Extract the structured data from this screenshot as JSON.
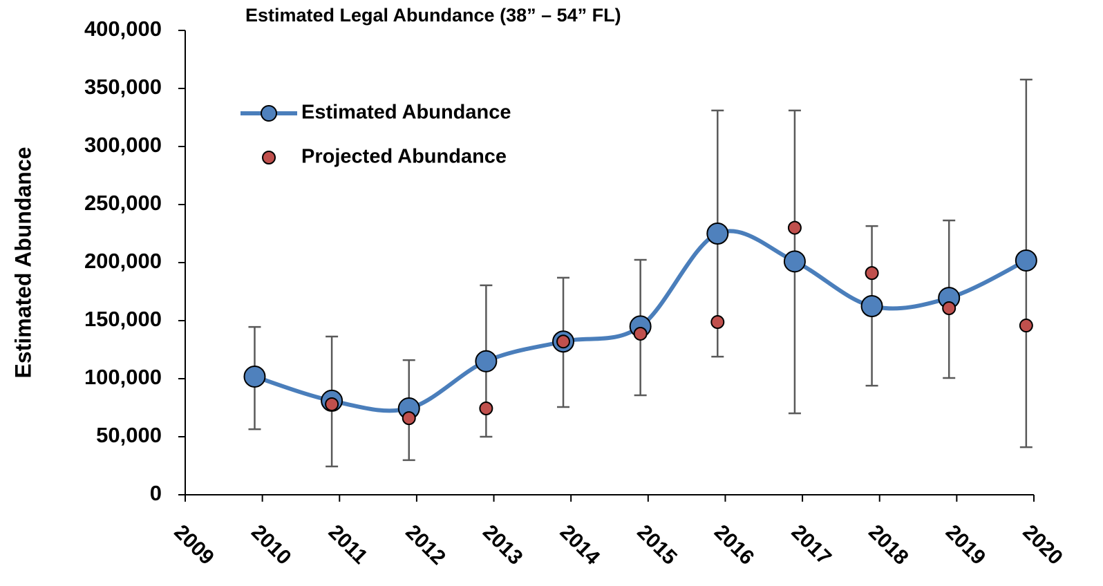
{
  "chart_data": {
    "type": "line",
    "smooth": true,
    "title": "Estimated Legal Abundance (38” – 54” FL)",
    "y_label": "Estimated Abundance",
    "x": [
      2009.9,
      2010.9,
      2011.9,
      2012.9,
      2013.9,
      2014.9,
      2015.9,
      2016.9,
      2017.9,
      2018.9,
      2019.9
    ],
    "series": [
      {
        "name": "Estimated Abundance",
        "color": "#4a7ebb",
        "marker_color": "#4f81bd",
        "line": true,
        "values": [
          101800,
          81000,
          74400,
          115000,
          132000,
          145000,
          225000,
          201000,
          162500,
          169600,
          201800
        ],
        "lower": [
          56500,
          24400,
          29800,
          50000,
          75600,
          85700,
          119000,
          70200,
          94000,
          100600,
          41000
        ],
        "upper": [
          144600,
          136300,
          116000,
          180400,
          187000,
          202400,
          331000,
          331000,
          231500,
          236300,
          357700
        ]
      },
      {
        "name": "Projected Abundance",
        "color": "#c0504d",
        "line": false,
        "values": [
          null,
          78000,
          66000,
          74400,
          132000,
          138700,
          148800,
          230000,
          191000,
          160700,
          145800
        ]
      }
    ],
    "error_color": "#595959",
    "xlim": [
      2009,
      2020
    ],
    "xticks": [
      2009,
      2010,
      2011,
      2012,
      2013,
      2014,
      2015,
      2016,
      2017,
      2018,
      2019,
      2020
    ],
    "ylim": [
      0,
      400000
    ],
    "yticks": [
      0,
      {
        "value": 50000,
        "label": "50,000"
      },
      {
        "value": 100000,
        "label": "100,000"
      },
      {
        "value": 150000,
        "label": "150,000"
      },
      {
        "value": 200000,
        "label": "200,000"
      },
      {
        "value": 250000,
        "label": "250,000"
      },
      {
        "value": 300000,
        "label": "300,000"
      },
      {
        "value": 350000,
        "label": "350,000"
      },
      {
        "value": 400000,
        "label": "400,000"
      }
    ],
    "legend": "upper left"
  }
}
